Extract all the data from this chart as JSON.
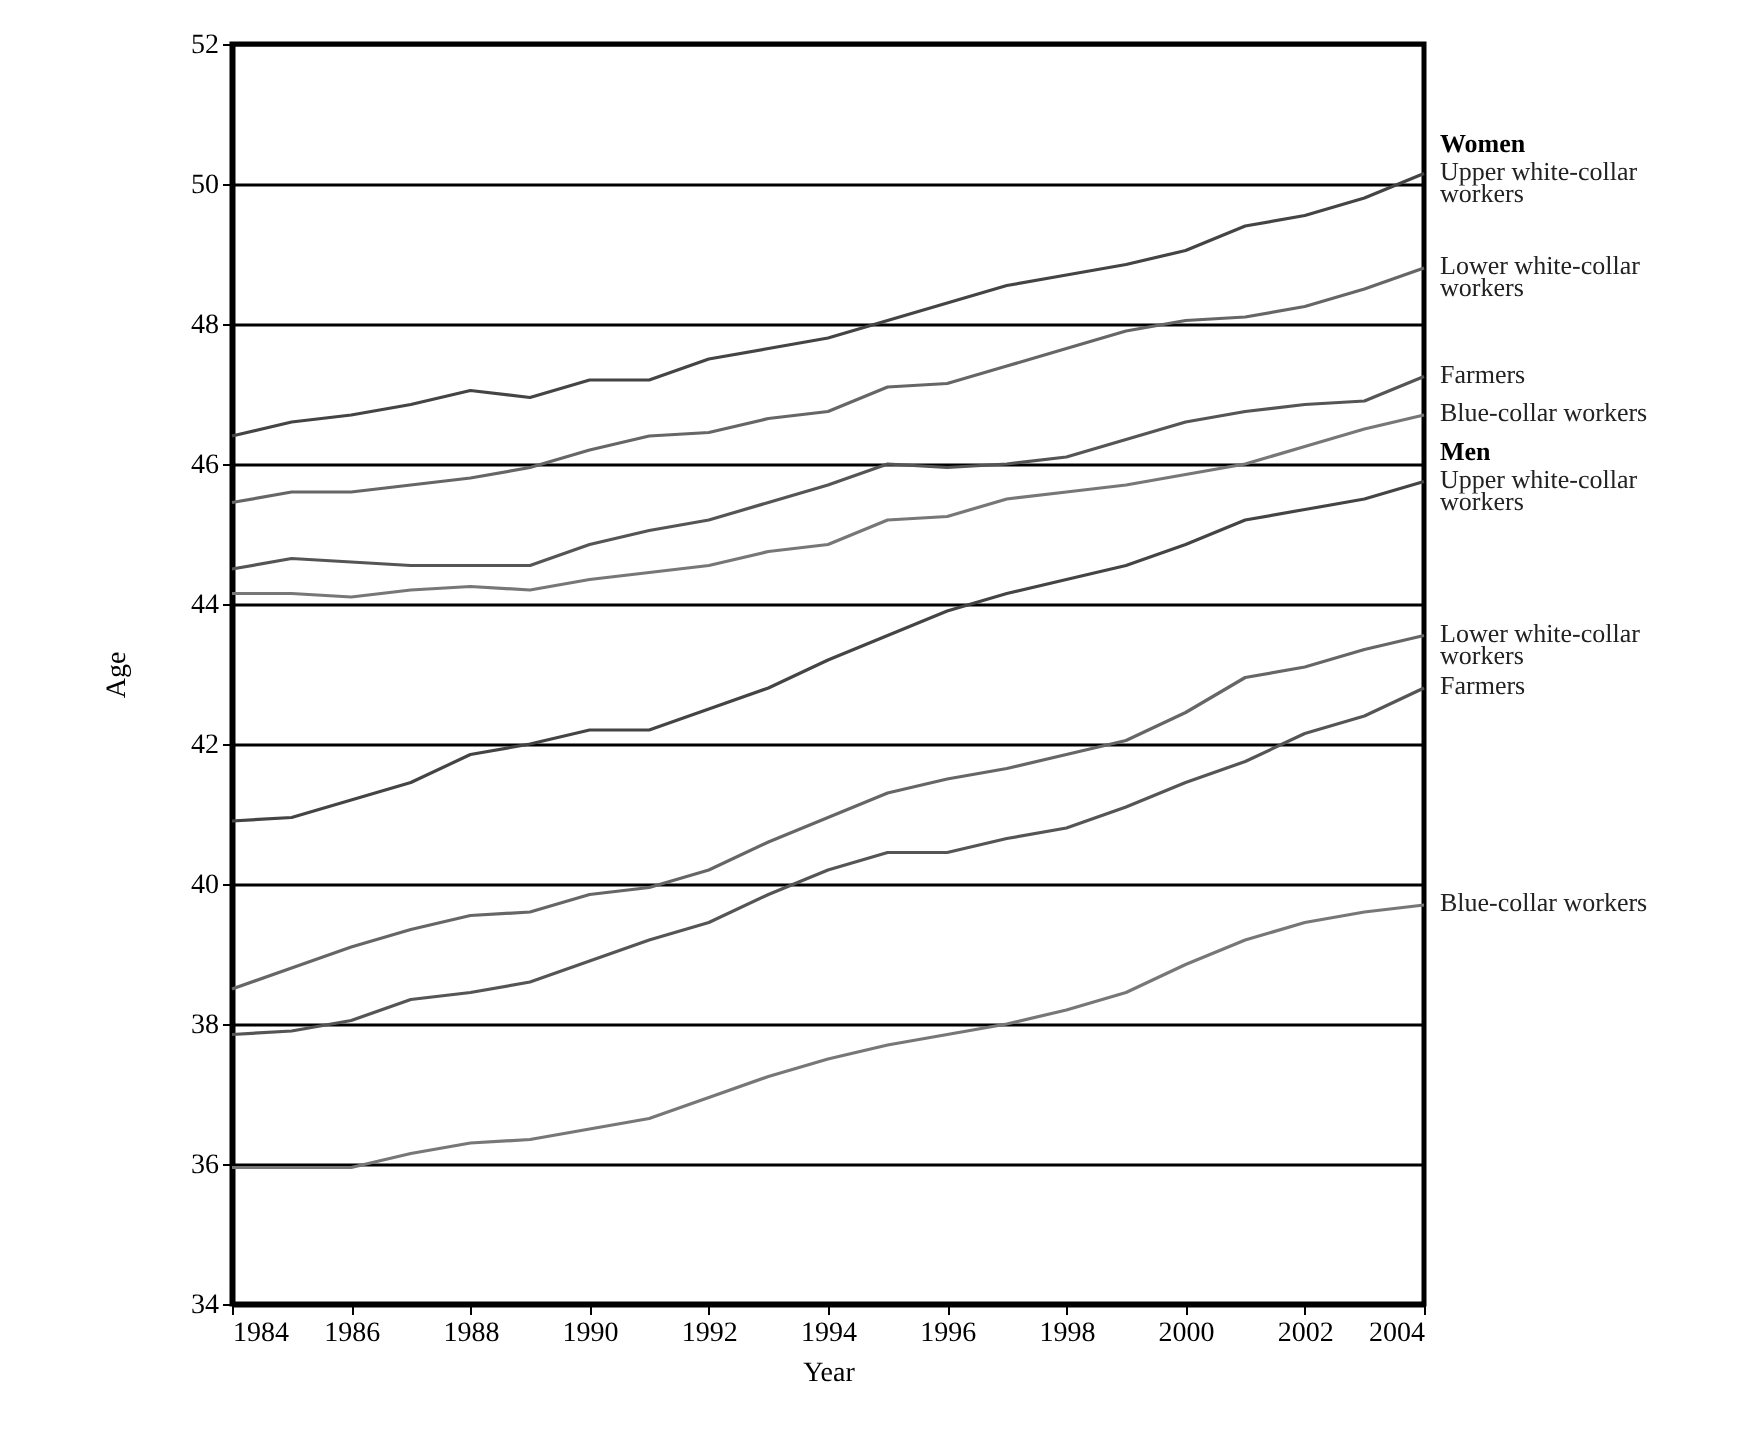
{
  "chart_data": {
    "type": "line",
    "xlabel": "Year",
    "ylabel": "Age",
    "x": [
      1984,
      1985,
      1986,
      1987,
      1988,
      1989,
      1990,
      1991,
      1992,
      1993,
      1994,
      1995,
      1996,
      1997,
      1998,
      1999,
      2000,
      2001,
      2002,
      2003,
      2004
    ],
    "xlim": [
      1984,
      2004
    ],
    "xticks": [
      1984,
      1986,
      1988,
      1990,
      1992,
      1994,
      1996,
      1998,
      2000,
      2002,
      2004
    ],
    "ylim": [
      34,
      52
    ],
    "yticks": [
      34,
      36,
      38,
      40,
      42,
      44,
      46,
      48,
      50,
      52
    ],
    "grid": "y",
    "marker": "none",
    "line_style": "solid",
    "annotations": [
      "Women",
      "Men"
    ],
    "series": [
      {
        "name": "Upper white-collar workers",
        "color": "#444444",
        "values": [
          46.4,
          46.6,
          46.7,
          46.85,
          47.05,
          46.95,
          47.2,
          47.2,
          47.5,
          47.65,
          47.8,
          48.05,
          48.3,
          48.55,
          48.7,
          48.85,
          49.05,
          49.4,
          49.55,
          49.8,
          50.15
        ]
      },
      {
        "name": "Lower white-collar workers",
        "color": "#666666",
        "values": [
          45.45,
          45.6,
          45.6,
          45.7,
          45.8,
          45.95,
          46.2,
          46.4,
          46.45,
          46.65,
          46.75,
          47.1,
          47.15,
          47.4,
          47.65,
          47.9,
          48.05,
          48.1,
          48.25,
          48.5,
          48.8
        ]
      },
      {
        "name": "Farmers",
        "color": "#555555",
        "values": [
          44.5,
          44.65,
          44.6,
          44.55,
          44.55,
          44.55,
          44.85,
          45.05,
          45.2,
          45.45,
          45.7,
          46.0,
          45.95,
          46.0,
          46.1,
          46.35,
          46.6,
          46.75,
          46.85,
          46.9,
          47.25
        ]
      },
      {
        "name": "Blue-collar workers",
        "color": "#777777",
        "values": [
          44.15,
          44.15,
          44.1,
          44.2,
          44.25,
          44.2,
          44.35,
          44.45,
          44.55,
          44.75,
          44.85,
          45.2,
          45.25,
          45.5,
          45.6,
          45.7,
          45.85,
          46.0,
          46.25,
          46.5,
          46.7
        ]
      },
      {
        "name": "Upper white-collar workers",
        "color": "#444444",
        "values": [
          40.9,
          40.95,
          41.2,
          41.45,
          41.85,
          42.0,
          42.2,
          42.2,
          42.5,
          42.8,
          43.2,
          43.55,
          43.9,
          44.15,
          44.35,
          44.55,
          44.85,
          45.2,
          45.35,
          45.5,
          45.75
        ]
      },
      {
        "name": "Lower white-collar workers",
        "color": "#666666",
        "values": [
          38.5,
          38.8,
          39.1,
          39.35,
          39.55,
          39.6,
          39.85,
          39.95,
          40.2,
          40.6,
          40.95,
          41.3,
          41.5,
          41.65,
          41.85,
          42.05,
          42.45,
          42.95,
          43.1,
          43.35,
          43.55
        ]
      },
      {
        "name": "Farmers",
        "color": "#555555",
        "values": [
          37.85,
          37.9,
          38.05,
          38.35,
          38.45,
          38.6,
          38.9,
          39.2,
          39.45,
          39.85,
          40.2,
          40.45,
          40.45,
          40.65,
          40.8,
          41.1,
          41.45,
          41.75,
          42.15,
          42.4,
          42.8
        ]
      },
      {
        "name": "Blue-collar workers",
        "color": "#777777",
        "values": [
          35.95,
          35.95,
          35.95,
          36.15,
          36.3,
          36.35,
          36.5,
          36.65,
          36.95,
          37.25,
          37.5,
          37.7,
          37.85,
          38.0,
          38.2,
          38.45,
          38.85,
          39.2,
          39.45,
          39.6,
          39.7
        ]
      }
    ]
  }
}
